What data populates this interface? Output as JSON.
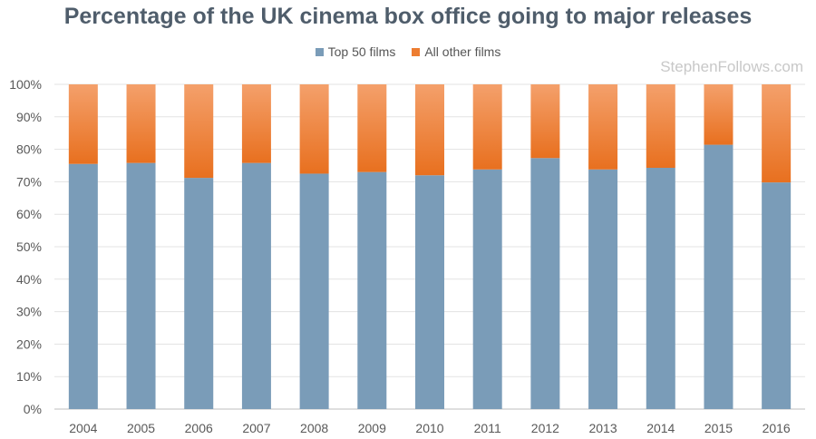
{
  "chart_data": {
    "type": "bar",
    "stacked": true,
    "title": "Percentage of the UK cinema box office going to major releases",
    "categories": [
      "2004",
      "2005",
      "2006",
      "2007",
      "2008",
      "2009",
      "2010",
      "2011",
      "2012",
      "2013",
      "2014",
      "2015",
      "2016"
    ],
    "series": [
      {
        "name": "Top 50 films",
        "color": "#7a9cb8",
        "values": [
          75.5,
          75.8,
          71.2,
          75.8,
          72.5,
          73.0,
          72.0,
          73.8,
          77.3,
          73.8,
          74.3,
          81.4,
          69.8
        ]
      },
      {
        "name": "All other films",
        "color": "#ed7d31",
        "values": [
          24.5,
          24.2,
          28.8,
          24.2,
          27.5,
          27.0,
          28.0,
          26.2,
          22.7,
          26.2,
          25.7,
          18.6,
          30.2
        ]
      }
    ],
    "y_ticks": [
      "0%",
      "10%",
      "20%",
      "30%",
      "40%",
      "50%",
      "60%",
      "70%",
      "80%",
      "90%",
      "100%"
    ],
    "ylim": [
      0,
      100
    ],
    "grid": true,
    "legend_position": "top-center"
  },
  "watermark": "StephenFollows.com"
}
